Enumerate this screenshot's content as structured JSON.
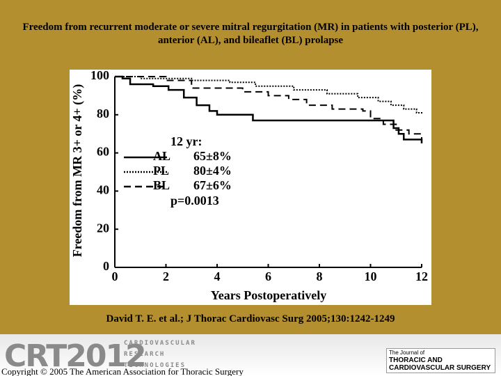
{
  "chart_data": {
    "type": "step",
    "title": "Freedom from recurrent moderate or severe mitral regurgitation (MR) in patients with posterior (PL), anterior (AL), and bileaflet (BL) prolapse",
    "x_label": "Years Postoperatively",
    "y_label": "Freedom from  MR 3+ or 4+ (%)",
    "xlim": [
      0,
      12
    ],
    "xticks": [
      0,
      2,
      4,
      6,
      8,
      10,
      12
    ],
    "ylim": [
      0,
      100
    ],
    "yticks": [
      0,
      20,
      40,
      60,
      80,
      100
    ],
    "legend_title": "12 yr:",
    "p_value_label": "p=0.0013",
    "series": [
      {
        "name": "AL",
        "color": "#000000",
        "dash": "solid",
        "survival_12yr_label": "65±8%",
        "x": [
          0,
          0.3,
          0.6,
          1.5,
          2.1,
          2.7,
          3.2,
          3.7,
          4.0,
          5.4,
          10.7,
          10.9,
          11.1,
          11.3,
          12
        ],
        "values": [
          100,
          99,
          96,
          95,
          93,
          89,
          85,
          82,
          80,
          77,
          77,
          73,
          70,
          67,
          65
        ]
      },
      {
        "name": "PL",
        "color": "#000000",
        "dash": "dotted",
        "survival_12yr_label": "80±4%",
        "x": [
          0,
          1,
          3,
          4.5,
          5.5,
          7,
          8.3,
          9.5,
          10.3,
          10.8,
          11.3,
          11.8,
          12
        ],
        "values": [
          100,
          99,
          98,
          97,
          95,
          93,
          91,
          89,
          87,
          85,
          83,
          81,
          80
        ]
      },
      {
        "name": "BL",
        "color": "#000000",
        "dash": "dashed",
        "survival_12yr_label": "67±6%",
        "x": [
          0,
          1.5,
          2.0,
          3.0,
          5.0,
          6.0,
          6.8,
          7.5,
          8.5,
          9.7,
          10.0,
          10.5,
          11.0,
          11.5,
          12
        ],
        "values": [
          100,
          100,
          98,
          94,
          92,
          90,
          88,
          85,
          83,
          82,
          78,
          75,
          72,
          70,
          67
        ]
      }
    ]
  },
  "citation": "David  T. E. et al.; J Thorac Cardiovasc Surg 2005;130:1242-1249",
  "footer": {
    "logo": "CRT2012",
    "logo_lines": [
      "CARDIOVASCULAR",
      "RESEARCH",
      "TECHNOLOGIES"
    ],
    "copyright": "Copyright © 2005 The American Association for Thoracic Surgery",
    "journal": [
      "The Journal of",
      "THORACIC AND",
      "CARDIOVASCULAR SURGERY"
    ]
  }
}
